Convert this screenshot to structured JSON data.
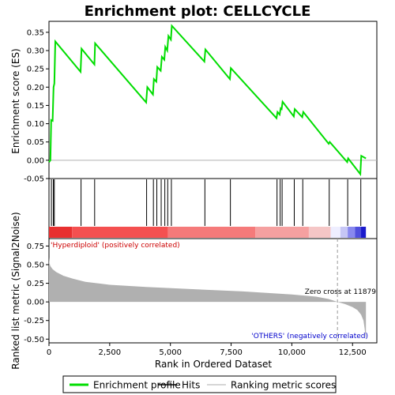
{
  "chart_data": {
    "type": "line",
    "title": "Enrichment plot: CELLCYCLE",
    "xlabel": "Rank in Ordered Dataset",
    "xlim": [
      0,
      13500
    ],
    "x_ticks": [
      "0",
      "2,500",
      "5,000",
      "7,500",
      "10,000",
      "12,500"
    ],
    "x_tick_values": [
      0,
      2500,
      5000,
      7500,
      10000,
      12500
    ],
    "es_panel": {
      "ylabel": "Enrichment score (ES)",
      "ylim": [
        -0.05,
        0.38
      ],
      "y_ticks": [
        "-0.05",
        "0.00",
        "0.05",
        "0.10",
        "0.15",
        "0.20",
        "0.25",
        "0.30",
        "0.35"
      ],
      "y_tick_values": [
        -0.05,
        0.0,
        0.05,
        0.1,
        0.15,
        0.2,
        0.25,
        0.3,
        0.35
      ],
      "series": [
        {
          "name": "Enrichment profile",
          "color": "#00dd00",
          "x": [
            0,
            60,
            90,
            150,
            190,
            220,
            260,
            1300,
            1340,
            1870,
            1900,
            4000,
            4050,
            4280,
            4320,
            4420,
            4460,
            4600,
            4650,
            4750,
            4790,
            4870,
            4920,
            5020,
            5060,
            6400,
            6440,
            7450,
            7490,
            9370,
            9410,
            9500,
            9540,
            9580,
            9620,
            10080,
            10120,
            10430,
            10470,
            11520,
            11560,
            12280,
            12320,
            12820,
            12860,
            13050
          ],
          "y": [
            -0.005,
            0.0,
            0.11,
            0.108,
            0.2,
            0.21,
            0.325,
            0.242,
            0.305,
            0.262,
            0.32,
            0.158,
            0.2,
            0.18,
            0.222,
            0.215,
            0.255,
            0.245,
            0.283,
            0.275,
            0.31,
            0.3,
            0.34,
            0.33,
            0.368,
            0.27,
            0.303,
            0.222,
            0.252,
            0.115,
            0.132,
            0.125,
            0.142,
            0.14,
            0.16,
            0.12,
            0.14,
            0.118,
            0.132,
            0.045,
            0.05,
            -0.005,
            0.005,
            -0.038,
            0.012,
            0.005
          ]
        }
      ]
    },
    "hits": [
      100,
      180,
      220,
      1320,
      1880,
      4020,
      4300,
      4440,
      4620,
      4770,
      4890,
      5040,
      6420,
      7470,
      9390,
      9520,
      9600,
      10100,
      10450,
      11540,
      12300,
      12840
    ],
    "heat_bar": {
      "segments": [
        {
          "from": 0,
          "to": 950,
          "color": "#e83030"
        },
        {
          "from": 950,
          "to": 4900,
          "color": "#f45050"
        },
        {
          "from": 4900,
          "to": 8500,
          "color": "#f57a7a"
        },
        {
          "from": 8500,
          "to": 10700,
          "color": "#f5a0a0"
        },
        {
          "from": 10700,
          "to": 11600,
          "color": "#f5c6c6"
        },
        {
          "from": 11600,
          "to": 12000,
          "color": "#eeeeff"
        },
        {
          "from": 12000,
          "to": 12300,
          "color": "#c6c6f5"
        },
        {
          "from": 12300,
          "to": 12600,
          "color": "#8888ee"
        },
        {
          "from": 12600,
          "to": 12850,
          "color": "#4f4fdd"
        },
        {
          "from": 12850,
          "to": 13050,
          "color": "#1a1acc"
        }
      ]
    },
    "metric_panel": {
      "ylabel": "Ranked list metric (Signal2Noise)",
      "ylim": [
        -0.55,
        0.85
      ],
      "y_ticks": [
        "-0.50",
        "-0.25",
        "0.00",
        "0.25",
        "0.50",
        "0.75"
      ],
      "y_tick_values": [
        -0.5,
        -0.25,
        0.0,
        0.25,
        0.5,
        0.75
      ],
      "color": "#b0b0b0",
      "x": [
        0,
        20,
        60,
        150,
        300,
        600,
        1000,
        1500,
        2500,
        4000,
        6000,
        8000,
        10000,
        11000,
        11500,
        11879,
        12200,
        12500,
        12700,
        12850,
        12950,
        13000,
        13050
      ],
      "y": [
        0.6,
        0.52,
        0.48,
        0.44,
        0.4,
        0.35,
        0.31,
        0.27,
        0.23,
        0.2,
        0.17,
        0.14,
        0.1,
        0.07,
        0.04,
        0.0,
        -0.03,
        -0.07,
        -0.11,
        -0.17,
        -0.25,
        -0.36,
        -0.52
      ],
      "zero_cross": 11879,
      "zero_cross_label": "Zero cross at 11879",
      "pos_label": "'Hyperdiploid' (positively correlated)",
      "neg_label": "'OTHERS' (negatively correlated)",
      "pos_color": "#cc0000",
      "neg_color": "#0000cc"
    },
    "legend": {
      "placement": "bottom",
      "items": [
        {
          "label": "Enrichment profile",
          "kind": "line",
          "color": "#00dd00"
        },
        {
          "label": "Hits",
          "kind": "line",
          "color": "#000000"
        },
        {
          "label": "Ranking metric scores",
          "kind": "line",
          "color": "#c8c8c8"
        }
      ]
    }
  }
}
